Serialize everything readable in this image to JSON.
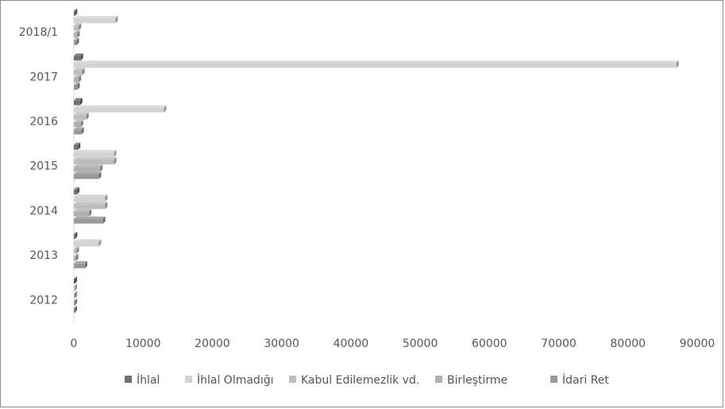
{
  "chart_data": {
    "type": "bar",
    "orientation": "horizontal",
    "categories": [
      "2018/1",
      "2017",
      "2016",
      "2015",
      "2014",
      "2013",
      "2012"
    ],
    "series": [
      {
        "name": "İhlal",
        "color": "#707070",
        "values": [
          150,
          1000,
          900,
          600,
          450,
          150,
          30
        ]
      },
      {
        "name": "İhlal Olmadığı",
        "color": "#d3d3d3",
        "values": [
          6000,
          87000,
          13000,
          5800,
          4500,
          3600,
          50
        ]
      },
      {
        "name": "Kabul Edilemezlik vd.",
        "color": "#bdbdbd",
        "values": [
          700,
          1200,
          1800,
          5800,
          4500,
          400,
          30
        ]
      },
      {
        "name": "Birleştirme",
        "color": "#b0b0b0",
        "values": [
          500,
          700,
          1000,
          3800,
          2200,
          300,
          30
        ]
      },
      {
        "name": "İdari Ret",
        "color": "#999999",
        "values": [
          400,
          500,
          1100,
          3600,
          4200,
          1600,
          30
        ]
      }
    ],
    "x_ticks": [
      "0",
      "10000",
      "20000",
      "30000",
      "40000",
      "50000",
      "60000",
      "70000",
      "80000",
      "90000"
    ],
    "xlim": [
      0,
      90000
    ],
    "legend_position": "bottom",
    "grid": false
  }
}
